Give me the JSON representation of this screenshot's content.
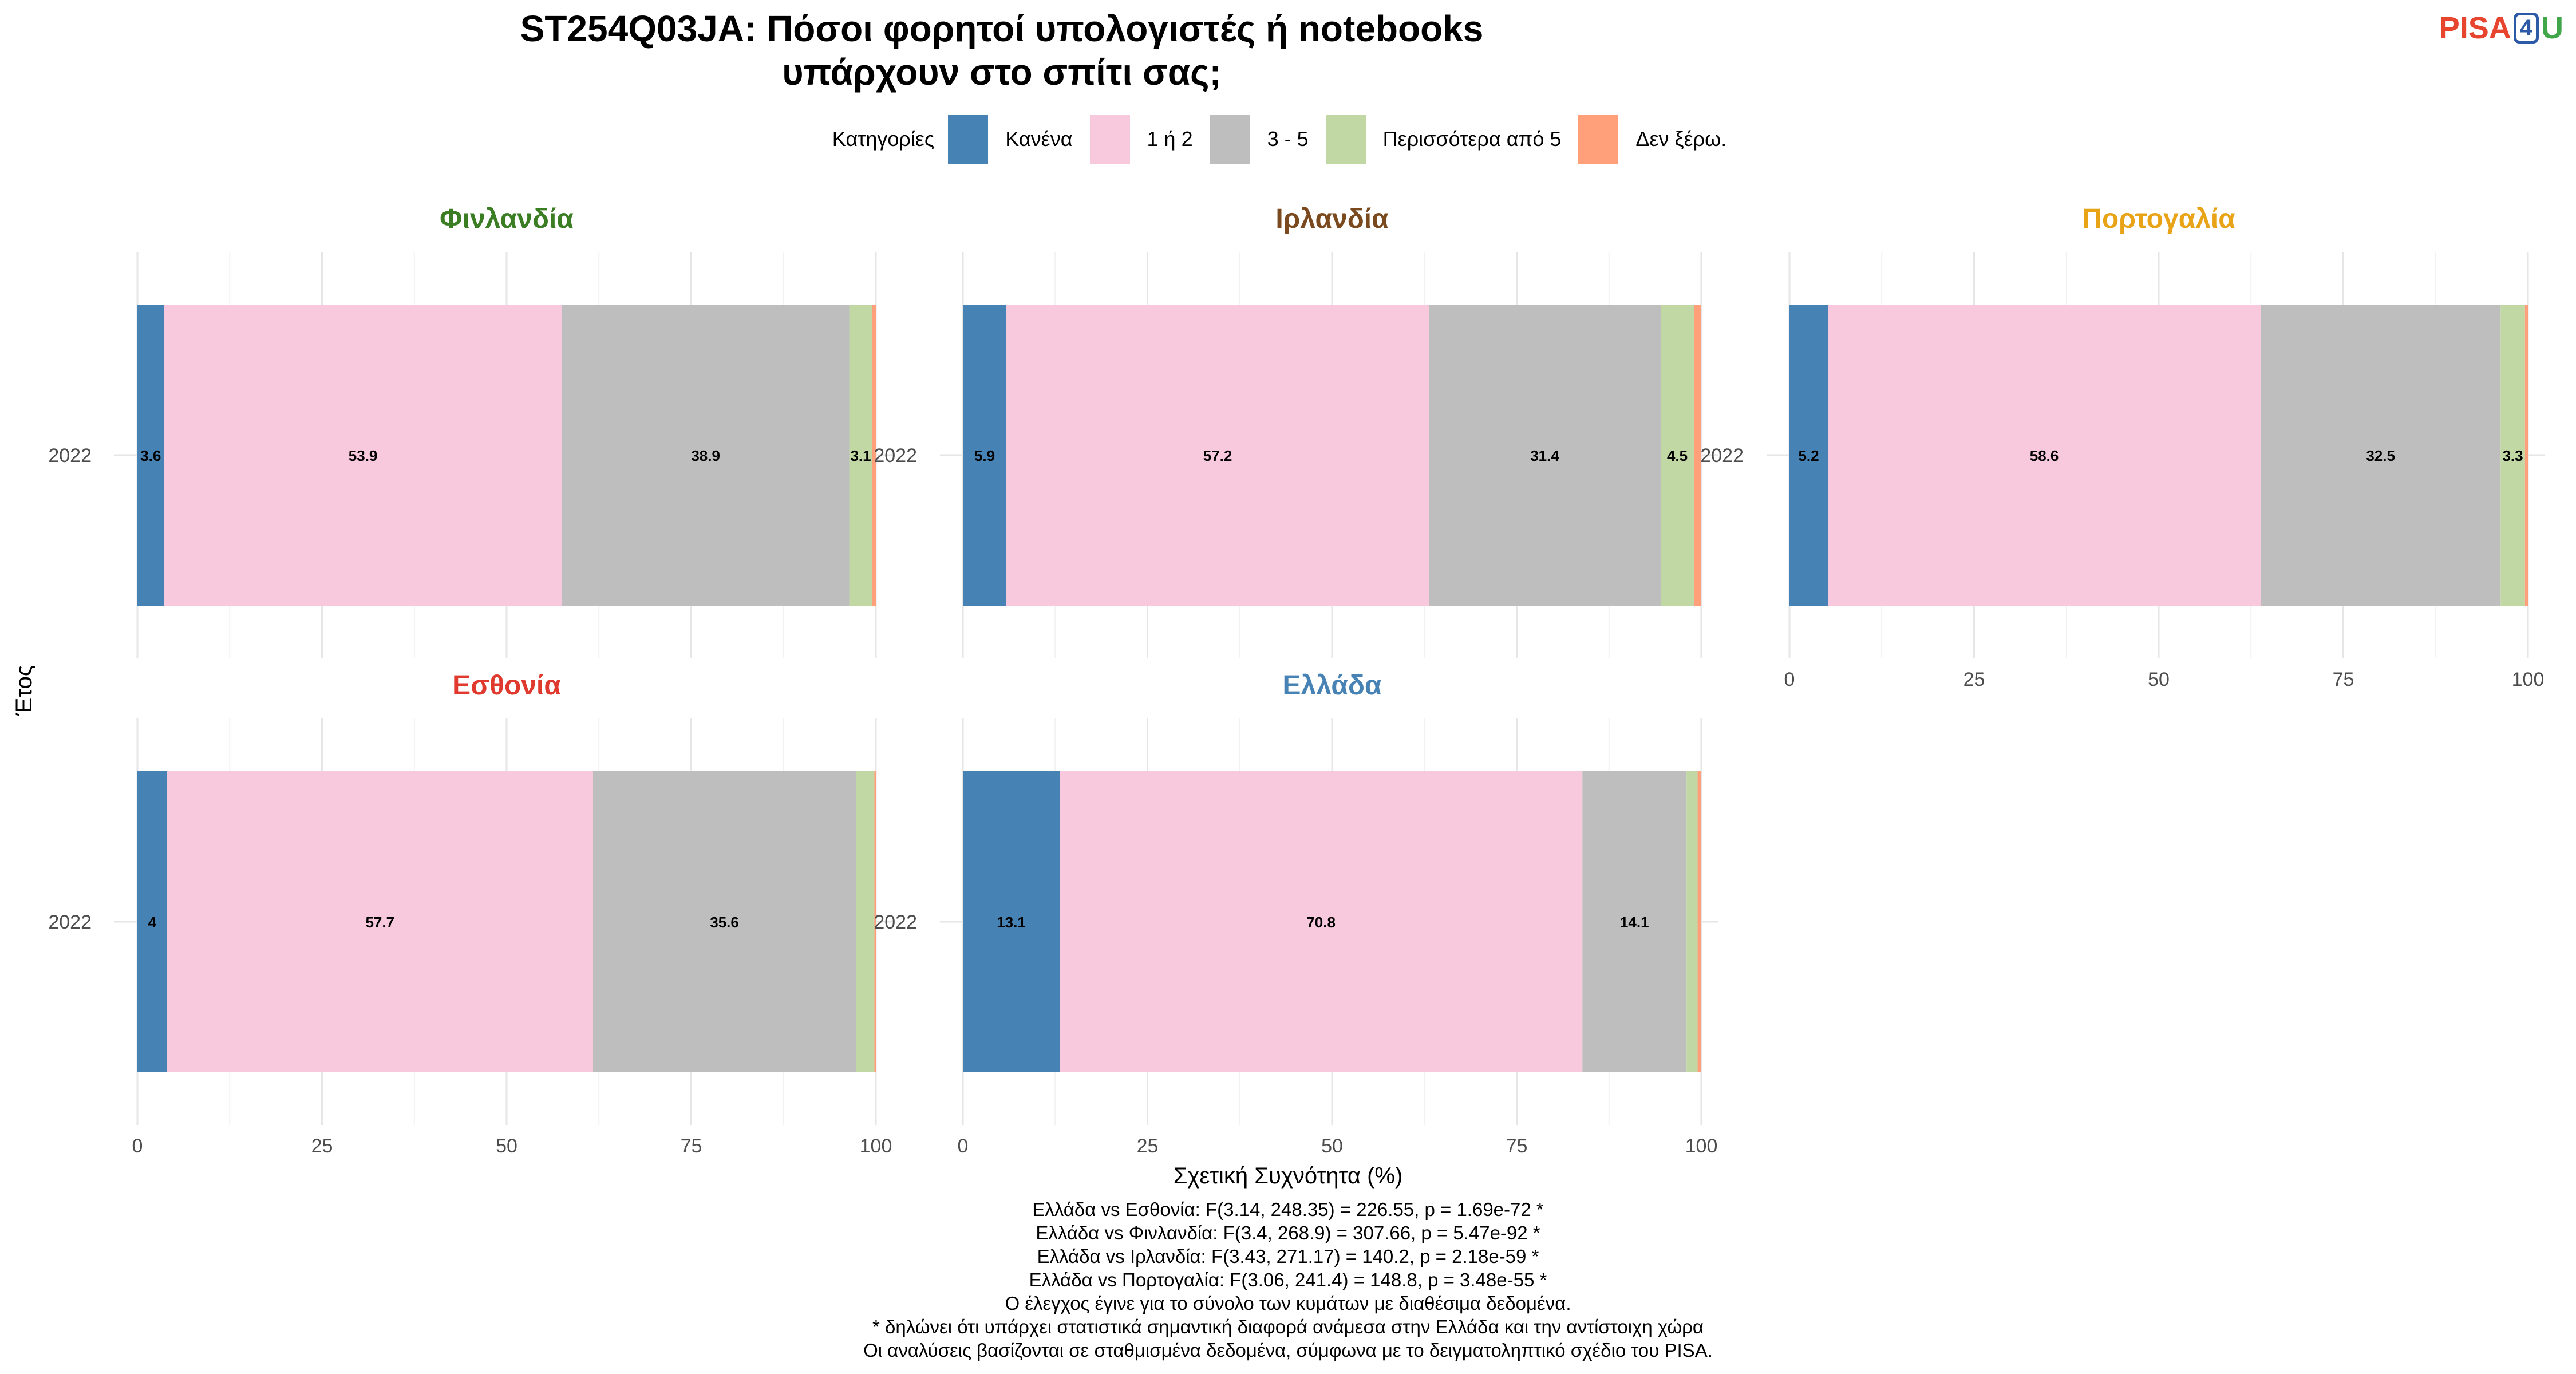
{
  "title": "ST254Q03JA: Πόσοι φορητοί υπολογιστές ή notebooks υπάρχουν στο σπίτι σας;",
  "logo": {
    "part1": "PISA",
    "part2": "4",
    "part3": "U"
  },
  "legend": {
    "title": "Κατηγορίες",
    "items": [
      {
        "label": "Κανένα",
        "color": "#4682b4"
      },
      {
        "label": "1 ή 2",
        "color": "#f8c8dc"
      },
      {
        "label": "3 - 5",
        "color": "#bebebe"
      },
      {
        "label": "Περισσότερα από 5",
        "color": "#c1d8a4"
      },
      {
        "label": "Δεν ξέρω.",
        "color": "#ffa07a"
      }
    ]
  },
  "ylabel": "Έτος",
  "xlabel": "Σχετική Συχνότητα (%)",
  "chart_data": {
    "type": "bar",
    "orientation": "horizontal",
    "stacked": true,
    "xlim": [
      0,
      100
    ],
    "x_ticks": [
      0,
      25,
      50,
      75,
      100
    ],
    "categories": [
      "2022"
    ],
    "legend_position": "top",
    "grid": true,
    "panels": [
      {
        "country": "Φινλανδία",
        "color": "#3a7d22",
        "year": "2022",
        "values": [
          3.6,
          53.9,
          38.9,
          3.1,
          0.5
        ],
        "labels": [
          "3.6",
          "53.9",
          "38.9",
          "3.1",
          ""
        ]
      },
      {
        "country": "Ιρλανδία",
        "color": "#7a4a1e",
        "year": "2022",
        "values": [
          5.9,
          57.2,
          31.4,
          4.5,
          1.0
        ],
        "labels": [
          "5.9",
          "57.2",
          "31.4",
          "4.5",
          ""
        ]
      },
      {
        "country": "Πορτογαλία",
        "color": "#e8a317",
        "year": "2022",
        "values": [
          5.2,
          58.6,
          32.5,
          3.3,
          0.4
        ],
        "labels": [
          "5.2",
          "58.6",
          "32.5",
          "3.3",
          ""
        ]
      },
      {
        "country": "Εσθονία",
        "color": "#e03a2e",
        "year": "2022",
        "values": [
          4.0,
          57.7,
          35.6,
          2.5,
          0.2
        ],
        "labels": [
          "4",
          "57.7",
          "35.6",
          "",
          ""
        ]
      },
      {
        "country": "Ελλάδα",
        "color": "#4682b4",
        "year": "2022",
        "values": [
          13.1,
          70.8,
          14.1,
          1.5,
          0.5
        ],
        "labels": [
          "13.1",
          "70.8",
          "14.1",
          "",
          ""
        ]
      }
    ]
  },
  "footnotes": [
    "Ελλάδα vs Εσθονία: F(3.14, 248.35) = 226.55, p = 1.69e-72 *",
    "Ελλάδα vs Φινλανδία: F(3.4, 268.9) = 307.66, p = 5.47e-92 *",
    "Ελλάδα vs Ιρλανδία: F(3.43, 271.17) = 140.2, p = 2.18e-59 *",
    "Ελλάδα vs Πορτογαλία: F(3.06, 241.4) = 148.8, p = 3.48e-55 *",
    "Ο έλεγχος έγινε για το σύνολο των κυμάτων με διαθέσιμα δεδομένα.",
    "* δηλώνει ότι υπάρχει στατιστικά σημαντική διαφορά ανάμεσα στην Ελλάδα και την αντίστοιχη χώρα",
    "Οι αναλύσεις βασίζονται σε σταθμισμένα δεδομένα, σύμφωνα με το δειγματοληπτικό σχέδιο του PISA."
  ]
}
